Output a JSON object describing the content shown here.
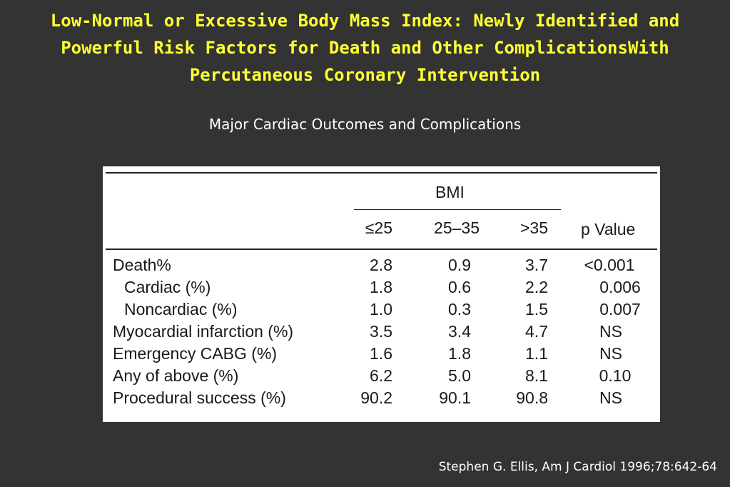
{
  "slide": {
    "title_lines": [
      "Low-Normal or Excessive Body Mass Index: Newly Identified and",
      "Powerful Risk Factors for Death and Other ComplicationsWith",
      "Percutaneous Coronary Intervention"
    ],
    "subtitle": "Major Cardiac Outcomes and Complications",
    "citation": "Stephen G. Ellis, Am J Cardiol 1996;78:642-64"
  },
  "table": {
    "group_header": "BMI",
    "columns": [
      "≤25",
      "25–35",
      ">35"
    ],
    "pvalue_header": "p Value",
    "rows": [
      {
        "label": "Death%",
        "values": [
          "2.8",
          "0.9",
          "3.7"
        ],
        "p": "<0.001"
      },
      {
        "label": "Cardiac (%)",
        "values": [
          "1.8",
          "0.6",
          "2.2"
        ],
        "p": "0.006"
      },
      {
        "label": "Noncardiac (%)",
        "values": [
          "1.0",
          "0.3",
          "1.5"
        ],
        "p": "0.007"
      },
      {
        "label": "Myocardial infarction (%)",
        "values": [
          "3.5",
          "3.4",
          "4.7"
        ],
        "p": "NS"
      },
      {
        "label": "Emergency CABG (%)",
        "values": [
          "1.6",
          "1.8",
          "1.1"
        ],
        "p": "NS"
      },
      {
        "label": "Any of above (%)",
        "values": [
          "6.2",
          "5.0",
          "8.1"
        ],
        "p": "0.10"
      },
      {
        "label": "Procedural success (%)",
        "values": [
          "90.2",
          "90.1",
          "90.8"
        ],
        "p": "NS"
      }
    ]
  }
}
